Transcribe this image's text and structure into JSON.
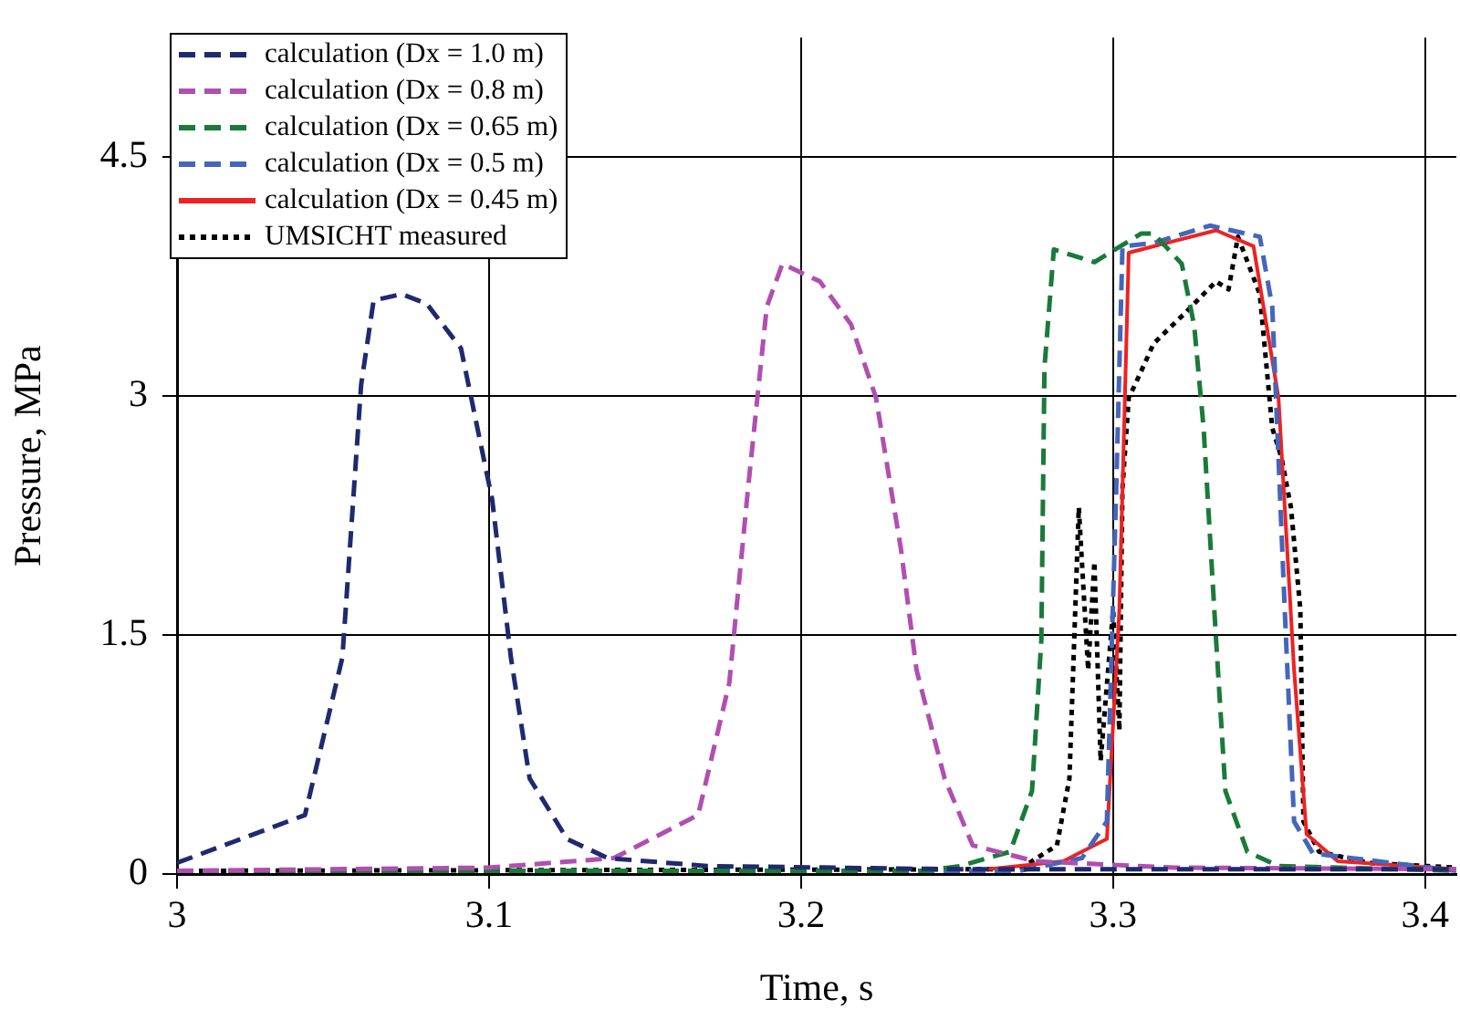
{
  "chart_data": {
    "type": "line",
    "xlabel": "Time, s",
    "ylabel": "Pressure, MPa",
    "xlim": [
      3,
      3.41
    ],
    "ylim": [
      0,
      5.25
    ],
    "xticks": [
      3,
      3.1,
      3.2,
      3.3,
      3.4
    ],
    "yticks": [
      0,
      1.5,
      3,
      4.5
    ],
    "grid": true,
    "legend": "top left",
    "marker": "none",
    "series": [
      {
        "name": "calculation (Dx = 1.0 m)",
        "color": "#1f2a6e",
        "line_style": "dashed",
        "x": [
          3.0,
          3.041,
          3.053,
          3.059,
          3.063,
          3.072,
          3.08,
          3.091,
          3.101,
          3.107,
          3.113,
          3.125,
          3.138,
          3.17,
          3.25,
          3.41
        ],
        "values": [
          0.07,
          0.37,
          1.36,
          3.07,
          3.6,
          3.64,
          3.58,
          3.3,
          2.35,
          1.36,
          0.6,
          0.22,
          0.1,
          0.05,
          0.03,
          0.03
        ]
      },
      {
        "name": "calculation (Dx = 0.8 m)",
        "color": "#b04fb0",
        "line_style": "dashed",
        "x": [
          3.0,
          3.1,
          3.14,
          3.167,
          3.177,
          3.183,
          3.189,
          3.194,
          3.206,
          3.216,
          3.224,
          3.232,
          3.237,
          3.246,
          3.255,
          3.275,
          3.32,
          3.41
        ],
        "values": [
          0.02,
          0.04,
          0.1,
          0.37,
          1.2,
          2.42,
          3.56,
          3.83,
          3.72,
          3.45,
          2.99,
          2.04,
          1.28,
          0.6,
          0.18,
          0.08,
          0.04,
          0.03
        ]
      },
      {
        "name": "calculation (Dx = 0.65 m)",
        "color": "#1a7a3a",
        "line_style": "dashed",
        "x": [
          3.0,
          3.24,
          3.251,
          3.267,
          3.274,
          3.277,
          3.278,
          3.281,
          3.294,
          3.309,
          3.313,
          3.322,
          3.326,
          3.329,
          3.333,
          3.336,
          3.343,
          3.353,
          3.41
        ],
        "values": [
          0.02,
          0.02,
          0.05,
          0.14,
          0.52,
          1.47,
          3.18,
          3.92,
          3.84,
          4.02,
          4.02,
          3.83,
          3.44,
          2.8,
          1.47,
          0.52,
          0.14,
          0.05,
          0.02
        ]
      },
      {
        "name": "calculation (Dx = 0.5 m)",
        "color": "#4466bb",
        "line_style": "dashed",
        "x": [
          3.0,
          3.27,
          3.29,
          3.298,
          3.301,
          3.303,
          3.313,
          3.331,
          3.347,
          3.351,
          3.355,
          3.358,
          3.364,
          3.41
        ],
        "values": [
          0.02,
          0.02,
          0.1,
          0.33,
          2.42,
          3.94,
          3.96,
          4.07,
          4.0,
          3.56,
          1.66,
          0.33,
          0.13,
          0.02
        ]
      },
      {
        "name": "calculation (Dx = 0.45 m)",
        "color": "#ee2222",
        "line_style": "solid",
        "x": [
          3.26,
          3.284,
          3.298,
          3.302,
          3.305,
          3.313,
          3.333,
          3.345,
          3.353,
          3.358,
          3.362,
          3.372,
          3.41
        ],
        "values": [
          0.03,
          0.08,
          0.22,
          1.66,
          3.9,
          3.94,
          4.04,
          3.94,
          2.99,
          1.28,
          0.25,
          0.08,
          0.03
        ]
      },
      {
        "name": "UMSICHT measured",
        "color": "#000000",
        "line_style": "dotted",
        "x": [
          3.0,
          3.27,
          3.282,
          3.286,
          3.289,
          3.292,
          3.294,
          3.296,
          3.3,
          3.302,
          3.303,
          3.305,
          3.307,
          3.313,
          3.323,
          3.333,
          3.337,
          3.34,
          3.347,
          3.351,
          3.354,
          3.357,
          3.36,
          3.361,
          3.366,
          3.382,
          3.41
        ],
        "values": [
          0.02,
          0.03,
          0.18,
          0.6,
          2.3,
          1.28,
          1.96,
          0.71,
          1.66,
          0.9,
          2.42,
          2.99,
          3.07,
          3.33,
          3.52,
          3.72,
          3.67,
          4.0,
          3.64,
          2.8,
          2.61,
          2.3,
          1.66,
          0.33,
          0.14,
          0.07,
          0.04
        ]
      }
    ]
  }
}
